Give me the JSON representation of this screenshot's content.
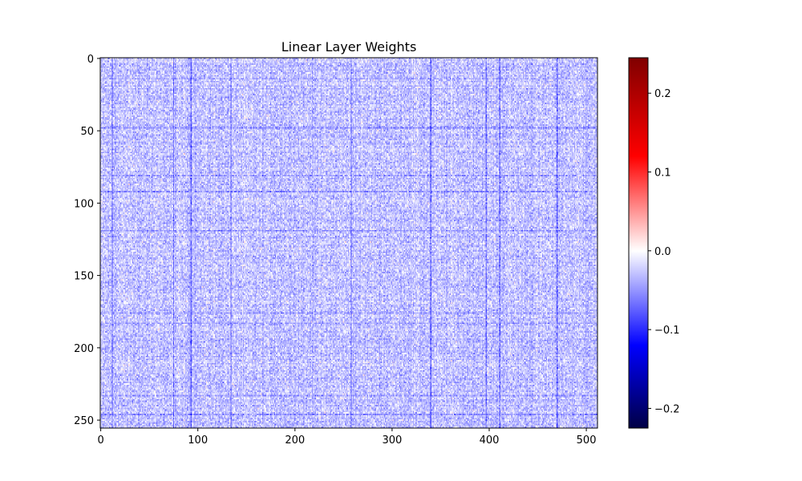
{
  "chart_data": {
    "type": "heatmap",
    "title": "Linear Layer Weights",
    "xlabel": "",
    "ylabel": "",
    "shape": [
      256,
      512
    ],
    "xlim": [
      0,
      512
    ],
    "ylim": [
      256,
      0
    ],
    "x_ticks": [
      0,
      100,
      200,
      300,
      400,
      500
    ],
    "x_tick_labels": [
      "0",
      "100",
      "200",
      "300",
      "400",
      "500"
    ],
    "y_ticks": [
      0,
      50,
      100,
      150,
      200,
      250
    ],
    "y_tick_labels": [
      "0",
      "50",
      "100",
      "150",
      "200",
      "250"
    ],
    "colormap": "seismic",
    "colormap_stops": [
      {
        "value": -0.225,
        "color": "#000045"
      },
      {
        "value": -0.12,
        "color": "#0000ff"
      },
      {
        "value": 0.0,
        "color": "#ffffff"
      },
      {
        "value": 0.12,
        "color": "#ff0000"
      },
      {
        "value": 0.245,
        "color": "#800000"
      }
    ],
    "value_range": [
      -0.225,
      0.245
    ],
    "colorbar_ticks": [
      0.2,
      0.1,
      0.0,
      -0.1,
      -0.2
    ],
    "colorbar_tick_labels": [
      "0.2",
      "0.1",
      "0.0",
      "−0.1",
      "−0.2"
    ],
    "dark_columns": [
      12,
      75,
      93,
      134,
      258,
      340,
      397,
      411,
      470
    ],
    "dark_rows": [
      14,
      48,
      81,
      92,
      119,
      176,
      183,
      233,
      246
    ],
    "grid": false
  }
}
